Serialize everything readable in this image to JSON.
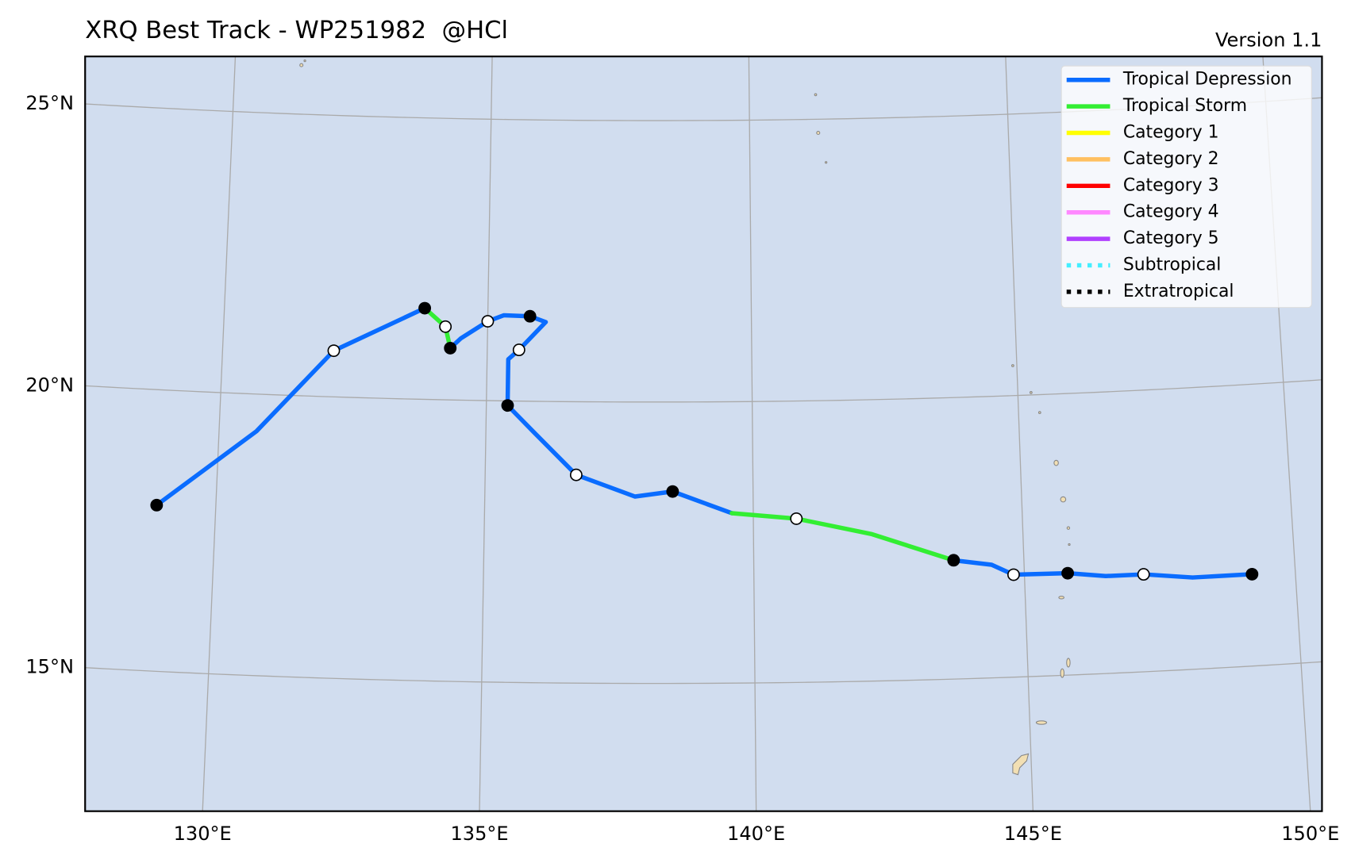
{
  "chart_data": {
    "type": "track-map",
    "title": "XRQ Best Track - WP251982  @HCl",
    "subtitle": "Version 1.1",
    "xlim": [
      127.9,
      150.2
    ],
    "ylim": [
      12.73,
      26.14
    ],
    "xticks": [
      {
        "value": 130,
        "label": "130°E"
      },
      {
        "value": 135,
        "label": "135°E"
      },
      {
        "value": 140,
        "label": "140°E"
      },
      {
        "value": 145,
        "label": "145°E"
      },
      {
        "value": 150,
        "label": "150°E"
      }
    ],
    "yticks": [
      {
        "value": 15,
        "label": "15°N"
      },
      {
        "value": 20,
        "label": "20°N"
      },
      {
        "value": 25,
        "label": "25°N"
      }
    ],
    "grid": true,
    "legend": "upper right",
    "series": [
      {
        "name": "Tropical Depression",
        "color": "#0a6cff",
        "linestyle": "solid",
        "lon": [
          128.9,
          130.7,
          132.1,
          133.8,
          null,
          134.3,
          134.5,
          135.0,
          135.3,
          135.8,
          136.1,
          135.6,
          135.4,
          135.4,
          135.9,
          136.7,
          137.8,
          138.5,
          139.6,
          null,
          143.7,
          144.4,
          144.8,
          145.8,
          146.5,
          147.2,
          148.1,
          149.2
        ],
        "lat": [
          17.95,
          19.34,
          20.82,
          21.62,
          null,
          20.92,
          21.1,
          21.41,
          21.52,
          21.51,
          21.41,
          20.91,
          20.74,
          19.92,
          19.45,
          18.7,
          18.32,
          18.41,
          18.02,
          null,
          17.11,
          17.01,
          16.82,
          16.81,
          16.73,
          16.73,
          16.63,
          16.63
        ]
      },
      {
        "name": "Tropical Storm",
        "color": "#33ee33",
        "linestyle": "solid",
        "lon": [
          133.8,
          134.2,
          134.3,
          null,
          139.6,
          140.8,
          142.2,
          143.7
        ],
        "lat": [
          21.62,
          21.3,
          20.92,
          null,
          18.02,
          17.91,
          17.61,
          17.11
        ]
      },
      {
        "name": "Category 1",
        "color": "#ffff00",
        "linestyle": "solid",
        "lon": [],
        "lat": []
      },
      {
        "name": "Category 2",
        "color": "#ffc060",
        "linestyle": "solid",
        "lon": [],
        "lat": []
      },
      {
        "name": "Category 3",
        "color": "#ff0000",
        "linestyle": "solid",
        "lon": [],
        "lat": []
      },
      {
        "name": "Category 4",
        "color": "#ff88ff",
        "linestyle": "solid",
        "lon": [],
        "lat": []
      },
      {
        "name": "Category 5",
        "color": "#b040ff",
        "linestyle": "solid",
        "lon": [],
        "lat": []
      },
      {
        "name": "Subtropical",
        "color": "#44eeff",
        "linestyle": "dotted",
        "lon": [],
        "lat": []
      },
      {
        "name": "Extratropical",
        "color": "#000000",
        "linestyle": "dotted",
        "lon": [],
        "lat": []
      }
    ],
    "fixes": {
      "lon": [
        128.9,
        132.1,
        133.8,
        134.2,
        134.3,
        135.0,
        135.8,
        135.6,
        135.4,
        136.7,
        138.5,
        140.8,
        143.7,
        144.8,
        145.8,
        147.2,
        149.2
      ],
      "lat": [
        17.95,
        20.82,
        21.62,
        21.3,
        20.92,
        21.41,
        21.51,
        20.91,
        19.92,
        18.7,
        18.41,
        17.91,
        17.11,
        16.82,
        16.81,
        16.73,
        16.63
      ],
      "colors": [
        "#000000",
        "#ffffff",
        "#000000",
        "#ffffff",
        "#000000",
        "#ffffff",
        "#000000",
        "#ffffff",
        "#000000",
        "#ffffff",
        "#000000",
        "#ffffff",
        "#000000",
        "#ffffff",
        "#000000",
        "#ffffff",
        "#000000"
      ]
    }
  }
}
